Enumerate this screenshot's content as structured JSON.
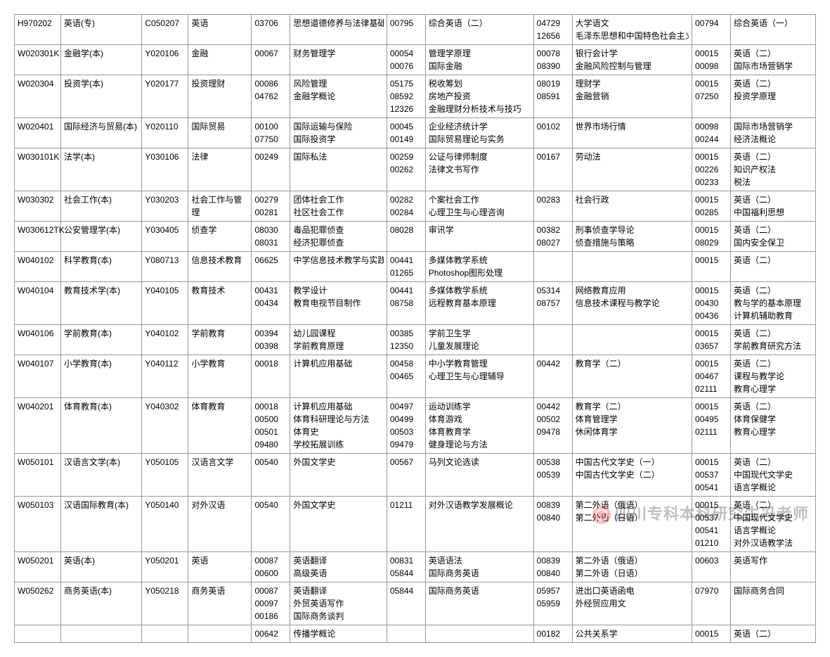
{
  "watermark": "四川专科本科研究生冯老师",
  "rows": [
    {
      "c1": "H970202",
      "c2": "英语(专)",
      "c3": "C050207",
      "c4": "英语",
      "c5": [
        "03706"
      ],
      "c6": [
        "思想道德修养与法律基础"
      ],
      "c7": [
        "00795"
      ],
      "c8": [
        "综合英语（二）"
      ],
      "c9": [
        "04729",
        "12656"
      ],
      "c10": [
        "大学语文",
        "毛泽东思想和中国特色社会主义理论体系概论"
      ],
      "c11": [
        "00794"
      ],
      "c12": [
        "综合英语（一）"
      ]
    },
    {
      "c1": "W020301K",
      "c2": "金融学(本)",
      "c3": "Y020106",
      "c4": "金融",
      "c5": [
        "00067"
      ],
      "c6": [
        "财务管理学"
      ],
      "c7": [
        "00054",
        "00076"
      ],
      "c8": [
        "管理学原理",
        "国际金融"
      ],
      "c9": [
        "00078",
        "08390"
      ],
      "c10": [
        "银行会计学",
        "金融风险控制与管理"
      ],
      "c11": [
        "00015",
        "00098"
      ],
      "c12": [
        "英语（二）",
        "国际市场营销学"
      ]
    },
    {
      "c1": "W020304",
      "c2": "投资学(本)",
      "c3": "Y020177",
      "c4": "投资理财",
      "c5": [
        "00086",
        "04762"
      ],
      "c6": [
        "风险管理",
        "金融学概论"
      ],
      "c7": [
        "05175",
        "08592",
        "12326"
      ],
      "c8": [
        "税收筹划",
        "房地产投资",
        "金融理财分析技术与技巧"
      ],
      "c9": [
        "08019",
        "08591"
      ],
      "c10": [
        "理财学",
        "金融营销"
      ],
      "c11": [
        "00015",
        "07250"
      ],
      "c12": [
        "英语（二）",
        "投资学原理"
      ]
    },
    {
      "c1": "W020401",
      "c2": "国际经济与贸易(本)",
      "c3": "Y020110",
      "c4": "国际贸易",
      "c5": [
        "00100",
        "07750"
      ],
      "c6": [
        "国际运输与保险",
        "国际投资学"
      ],
      "c7": [
        "00045",
        "00149"
      ],
      "c8": [
        "企业经济统计学",
        "国际贸易理论与实务"
      ],
      "c9": [
        "00102"
      ],
      "c10": [
        "世界市场行情"
      ],
      "c11": [
        "00098",
        "00244"
      ],
      "c12": [
        "国际市场营销学",
        "经济法概论"
      ]
    },
    {
      "c1": "W030101K",
      "c2": "法学(本)",
      "c3": "Y030106",
      "c4": "法律",
      "c5": [
        "00249"
      ],
      "c6": [
        "国际私法"
      ],
      "c7": [
        "00259",
        "00262"
      ],
      "c8": [
        "公证与律师制度",
        "法律文书写作"
      ],
      "c9": [
        "00167"
      ],
      "c10": [
        "劳动法"
      ],
      "c11": [
        "00015",
        "00226",
        "00233"
      ],
      "c12": [
        "英语（二）",
        "知识产权法",
        "税法"
      ]
    },
    {
      "c1": "W030302",
      "c2": "社会工作(本)",
      "c3": "Y030203",
      "c4": "社会工作与管理",
      "c5": [
        "00279",
        "00281"
      ],
      "c6": [
        "团体社会工作",
        "社区社会工作"
      ],
      "c7": [
        "00282",
        "00284"
      ],
      "c8": [
        "个案社会工作",
        "心理卫生与心理咨询"
      ],
      "c9": [
        "00283"
      ],
      "c10": [
        "社会行政"
      ],
      "c11": [
        "00015",
        "00285"
      ],
      "c12": [
        "英语（二）",
        "中国福利思想"
      ]
    },
    {
      "c1": "W030612TK",
      "c2": "公安管理学(本)",
      "c3": "Y030405",
      "c4": "侦查学",
      "c5": [
        "08030",
        "08031"
      ],
      "c6": [
        "毒品犯罪侦查",
        "经济犯罪侦查"
      ],
      "c7": [
        "08028"
      ],
      "c8": [
        "审讯学"
      ],
      "c9": [
        "00382",
        "08027"
      ],
      "c10": [
        "刑事侦查学导论",
        "侦查措施与策略"
      ],
      "c11": [
        "00015",
        "08029"
      ],
      "c12": [
        "英语（二）",
        "国内安全保卫"
      ]
    },
    {
      "c1": "W040102",
      "c2": "科学教育(本)",
      "c3": "Y080713",
      "c4": "信息技术教育",
      "c5": [
        "06625"
      ],
      "c6": [
        "中学信息技术教学与实践研究"
      ],
      "c7": [
        "00441",
        "01265"
      ],
      "c8": [
        "多媒体教学系统",
        "Photoshop图形处理"
      ],
      "c9": [],
      "c10": [],
      "c11": [
        "00015"
      ],
      "c12": [
        "英语（二）"
      ]
    },
    {
      "c1": "W040104",
      "c2": "教育技术学(本)",
      "c3": "Y040105",
      "c4": "教育技术",
      "c5": [
        "00431",
        "00434"
      ],
      "c6": [
        "教学设计",
        "教育电视节目制作"
      ],
      "c7": [
        "00441",
        "08758"
      ],
      "c8": [
        "多媒体教学系统",
        "远程教育基本原理"
      ],
      "c9": [
        "05314",
        "08757"
      ],
      "c10": [
        "网络教育应用",
        "信息技术课程与教学论"
      ],
      "c11": [
        "00015",
        "00430",
        "00436"
      ],
      "c12": [
        "英语（二）",
        "教与学的基本原理",
        "计算机辅助教育"
      ]
    },
    {
      "c1": "W040106",
      "c2": "学前教育(本)",
      "c3": "Y040102",
      "c4": "学前教育",
      "c5": [
        "00394",
        "00398"
      ],
      "c6": [
        "幼儿园课程",
        "学前教育原理"
      ],
      "c7": [
        "00385",
        "12350"
      ],
      "c8": [
        "学前卫生学",
        "儿童发展理论"
      ],
      "c9": [],
      "c10": [],
      "c11": [
        "00015",
        "03657"
      ],
      "c12": [
        "英语（二）",
        "学前教育研究方法"
      ]
    },
    {
      "c1": "W040107",
      "c2": "小学教育(本)",
      "c3": "Y040112",
      "c4": "小学教育",
      "c5": [
        "00018"
      ],
      "c6": [
        "计算机应用基础"
      ],
      "c7": [
        "00458",
        "00465"
      ],
      "c8": [
        "中小学教育管理",
        "心理卫生与心理辅导"
      ],
      "c9": [
        "00442"
      ],
      "c10": [
        "教育学（二）"
      ],
      "c11": [
        "00015",
        "00467",
        "02111"
      ],
      "c12": [
        "英语（二）",
        "课程与教学论",
        "教育心理学"
      ]
    },
    {
      "c1": "W040201",
      "c2": "体育教育(本)",
      "c3": "Y040302",
      "c4": "体育教育",
      "c5": [
        "00018",
        "00500",
        "00501",
        "09480"
      ],
      "c6": [
        "计算机应用基础",
        "体育科研理论与方法",
        "体育史",
        "学校拓展训练"
      ],
      "c7": [
        "00497",
        "00499",
        "00503",
        "09479"
      ],
      "c8": [
        "运动训练学",
        "体育游戏",
        "体育教育学",
        "健身理论与方法"
      ],
      "c9": [
        "00442",
        "00502",
        "09478"
      ],
      "c10": [
        "教育学（二）",
        "体育管理学",
        "休闲体育学"
      ],
      "c11": [
        "00015",
        "00495",
        "02111"
      ],
      "c12": [
        "英语（二）",
        "体育保健学",
        "教育心理学"
      ]
    },
    {
      "c1": "W050101",
      "c2": "汉语言文学(本)",
      "c3": "Y050105",
      "c4": "汉语言文学",
      "c5": [
        "00540"
      ],
      "c6": [
        "外国文学史"
      ],
      "c7": [
        "00567"
      ],
      "c8": [
        "马列文论选读"
      ],
      "c9": [
        "00538",
        "00539"
      ],
      "c10": [
        "中国古代文学史（一）",
        "中国古代文学史（二）"
      ],
      "c11": [
        "00015",
        "00537",
        "00541"
      ],
      "c12": [
        "英语（二）",
        "中国现代文学史",
        "语言学概论"
      ]
    },
    {
      "c1": "W050103",
      "c2": "汉语国际教育(本)",
      "c3": "Y050140",
      "c4": "对外汉语",
      "c5": [
        "00540"
      ],
      "c6": [
        "外国文学史"
      ],
      "c7": [
        "01211"
      ],
      "c8": [
        "对外汉语教学发展概论"
      ],
      "c9": [
        "00839",
        "00840"
      ],
      "c10": [
        "第二外语（俄语）",
        "第二外语（日语）"
      ],
      "c11": [
        "00015",
        "00537",
        "00541",
        "01210"
      ],
      "c12": [
        "英语（二）",
        "中国现代文学史",
        "语言学概论",
        "对外汉语教学法"
      ]
    },
    {
      "c1": "W050201",
      "c2": "英语(本)",
      "c3": "Y050201",
      "c4": "英语",
      "c5": [
        "00087",
        "00600"
      ],
      "c6": [
        "英语翻译",
        "高级英语"
      ],
      "c7": [
        "00831",
        "05844"
      ],
      "c8": [
        "英语语法",
        "国际商务英语"
      ],
      "c9": [
        "00839",
        "00840"
      ],
      "c10": [
        "第二外语（俄语）",
        "第二外语（日语）"
      ],
      "c11": [
        "00603"
      ],
      "c12": [
        "英语写作"
      ]
    },
    {
      "c1": "W050262",
      "c2": "商务英语(本)",
      "c3": "Y050218",
      "c4": "商务英语",
      "c5": [
        "00087",
        "00097",
        "00186"
      ],
      "c6": [
        "英语翻译",
        "外贸英语写作",
        "国际商务谈判"
      ],
      "c7": [
        "05844"
      ],
      "c8": [
        "国际商务英语"
      ],
      "c9": [
        "05957",
        "05959"
      ],
      "c10": [
        "进出口英语函电",
        "外经贸应用文"
      ],
      "c11": [
        "07970"
      ],
      "c12": [
        "国际商务合同"
      ]
    },
    {
      "c1": "",
      "c2": "",
      "c3": "",
      "c4": "",
      "c5": [
        "00642"
      ],
      "c6": [
        "传播学概论"
      ],
      "c7": [],
      "c8": [],
      "c9": [
        "00182"
      ],
      "c10": [
        "公共关系学"
      ],
      "c11": [
        "00015"
      ],
      "c12": [
        "英语（二）"
      ]
    }
  ]
}
